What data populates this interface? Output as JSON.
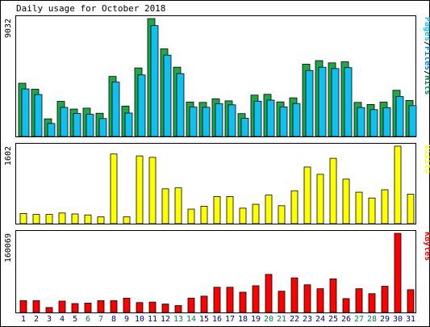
{
  "title": "Daily usage for October 2018",
  "colors": {
    "background": "#ffffff",
    "border": "#000000",
    "hits": "#00805c",
    "hits_light": "#1ea84a",
    "files": "#0080ff",
    "files_light": "#12c0f0",
    "visits": "#ffff00",
    "kbytes": "#ff0000",
    "weekend_label": "#00805c",
    "weekday_label": "#000080"
  },
  "chart_data": [
    {
      "type": "bar",
      "title": "",
      "ylabel": "Pages/Files/Hits",
      "y_max_label": "9032",
      "ylim": [
        0,
        9032
      ],
      "categories": [
        "1",
        "2",
        "3",
        "4",
        "5",
        "6",
        "7",
        "8",
        "9",
        "10",
        "11",
        "12",
        "13",
        "14",
        "15",
        "16",
        "17",
        "18",
        "19",
        "20",
        "21",
        "22",
        "23",
        "24",
        "25",
        "26",
        "27",
        "28",
        "29",
        "30",
        "31"
      ],
      "series": [
        {
          "name": "Hits",
          "values": [
            4080,
            3620,
            1350,
            2690,
            2100,
            2170,
            1780,
            4600,
            2330,
            5250,
            9032,
            6710,
            5310,
            2640,
            2610,
            2880,
            2730,
            1750,
            3170,
            3230,
            2650,
            2960,
            5540,
            5810,
            5640,
            5720,
            2610,
            2450,
            2630,
            3540,
            2760
          ]
        },
        {
          "name": "Files",
          "values": [
            3830,
            3400,
            1180,
            2410,
            1950,
            1880,
            1560,
            4350,
            1980,
            4900,
            8680,
            6420,
            5000,
            2440,
            2420,
            2700,
            2610,
            1580,
            2890,
            2970,
            2450,
            2710,
            5240,
            5490,
            5390,
            5460,
            2400,
            2240,
            2390,
            3240,
            2550
          ]
        }
      ]
    },
    {
      "type": "bar",
      "title": "",
      "ylabel": "Visits",
      "y_max_label": "1602",
      "ylim": [
        0,
        1602
      ],
      "categories": [
        "1",
        "2",
        "3",
        "4",
        "5",
        "6",
        "7",
        "8",
        "9",
        "10",
        "11",
        "12",
        "13",
        "14",
        "15",
        "16",
        "17",
        "18",
        "19",
        "20",
        "21",
        "22",
        "23",
        "24",
        "25",
        "26",
        "27",
        "28",
        "29",
        "30",
        "31"
      ],
      "series": [
        {
          "name": "Visits",
          "values": [
            210,
            190,
            190,
            220,
            200,
            180,
            140,
            1440,
            140,
            1400,
            1370,
            720,
            740,
            300,
            360,
            560,
            560,
            320,
            400,
            590,
            370,
            680,
            1170,
            1020,
            1350,
            920,
            650,
            530,
            700,
            1602,
            610
          ]
        }
      ]
    },
    {
      "type": "bar",
      "title": "",
      "ylabel": "KBytes",
      "y_max_label": "160069",
      "ylim": [
        0,
        160069
      ],
      "categories": [
        "1",
        "2",
        "3",
        "4",
        "5",
        "6",
        "7",
        "8",
        "9",
        "10",
        "11",
        "12",
        "13",
        "14",
        "15",
        "16",
        "17",
        "18",
        "19",
        "20",
        "21",
        "22",
        "23",
        "24",
        "25",
        "26",
        "27",
        "28",
        "29",
        "30",
        "31"
      ],
      "series": [
        {
          "name": "KBytes",
          "values": [
            24000,
            24000,
            10000,
            23000,
            18000,
            19000,
            24000,
            24000,
            29000,
            20000,
            21000,
            17000,
            14000,
            29000,
            33000,
            51000,
            51000,
            41000,
            54000,
            77000,
            43000,
            70000,
            56000,
            48000,
            68000,
            28000,
            48000,
            38000,
            53000,
            160069,
            46000
          ]
        }
      ]
    }
  ],
  "weekend_days": [
    "6",
    "7",
    "13",
    "14",
    "20",
    "21",
    "27",
    "28"
  ]
}
